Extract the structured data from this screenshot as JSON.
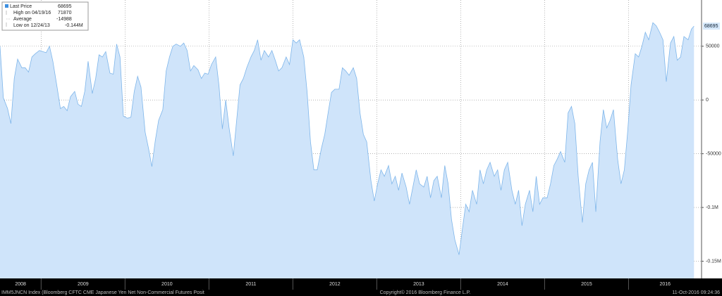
{
  "chart_data": {
    "type": "area",
    "color": "#cfe4fa",
    "line_color": "#7fb6ea",
    "grid": true,
    "xlim": [
      2008.51,
      2016.87
    ],
    "xticks": [
      2008,
      2009,
      2010,
      2011,
      2012,
      2013,
      2014,
      2015,
      2016
    ],
    "ylim": [
      -166000,
      93000
    ],
    "yticks": [
      50000,
      0,
      -50000,
      {
        "value": -100000,
        "label": "-0.1M"
      },
      {
        "value": -150000,
        "label": "-0.15M"
      }
    ],
    "x": [
      2008.51,
      2008.55,
      2008.6,
      2008.64,
      2008.68,
      2008.72,
      2008.77,
      2008.81,
      2008.85,
      2008.89,
      2008.93,
      2008.98,
      2009.02,
      2009.06,
      2009.1,
      2009.14,
      2009.19,
      2009.23,
      2009.27,
      2009.31,
      2009.35,
      2009.4,
      2009.44,
      2009.48,
      2009.52,
      2009.56,
      2009.61,
      2009.65,
      2009.69,
      2009.73,
      2009.77,
      2009.82,
      2009.86,
      2009.9,
      2009.94,
      2009.98,
      2010.03,
      2010.07,
      2010.11,
      2010.15,
      2010.19,
      2010.24,
      2010.28,
      2010.32,
      2010.36,
      2010.4,
      2010.45,
      2010.49,
      2010.53,
      2010.57,
      2010.61,
      2010.66,
      2010.7,
      2010.74,
      2010.78,
      2010.82,
      2010.87,
      2010.91,
      2010.95,
      2010.99,
      2011.03,
      2011.08,
      2011.12,
      2011.16,
      2011.2,
      2011.24,
      2011.29,
      2011.33,
      2011.37,
      2011.41,
      2011.45,
      2011.5,
      2011.54,
      2011.58,
      2011.62,
      2011.66,
      2011.71,
      2011.75,
      2011.79,
      2011.83,
      2011.87,
      2011.92,
      2011.96,
      2012.0,
      2012.04,
      2012.08,
      2012.13,
      2012.17,
      2012.21,
      2012.25,
      2012.29,
      2012.34,
      2012.38,
      2012.42,
      2012.46,
      2012.5,
      2012.55,
      2012.59,
      2012.63,
      2012.67,
      2012.72,
      2012.76,
      2012.8,
      2012.84,
      2012.88,
      2012.93,
      2012.97,
      2013.01,
      2013.05,
      2013.09,
      2013.14,
      2013.18,
      2013.22,
      2013.26,
      2013.3,
      2013.35,
      2013.39,
      2013.43,
      2013.47,
      2013.51,
      2013.56,
      2013.6,
      2013.64,
      2013.68,
      2013.72,
      2013.77,
      2013.81,
      2013.85,
      2013.89,
      2013.93,
      2013.98,
      2014.02,
      2014.06,
      2014.1,
      2014.14,
      2014.19,
      2014.23,
      2014.27,
      2014.31,
      2014.35,
      2014.4,
      2014.44,
      2014.48,
      2014.52,
      2014.56,
      2014.61,
      2014.65,
      2014.69,
      2014.73,
      2014.77,
      2014.82,
      2014.86,
      2014.9,
      2014.94,
      2014.98,
      2015.03,
      2015.07,
      2015.11,
      2015.15,
      2015.19,
      2015.24,
      2015.28,
      2015.32,
      2015.36,
      2015.4,
      2015.45,
      2015.49,
      2015.53,
      2015.57,
      2015.61,
      2015.66,
      2015.7,
      2015.74,
      2015.78,
      2015.82,
      2015.87,
      2015.91,
      2015.95,
      2015.99,
      2016.03,
      2016.08,
      2016.12,
      2016.16,
      2016.2,
      2016.24,
      2016.29,
      2016.33,
      2016.37,
      2016.41,
      2016.45,
      2016.5,
      2016.54,
      2016.58,
      2016.62,
      2016.66,
      2016.71,
      2016.75,
      2016.78
    ],
    "values": [
      50000,
      2000,
      -8000,
      -22000,
      20000,
      38000,
      30000,
      30000,
      26000,
      40000,
      43000,
      46000,
      45000,
      44000,
      50000,
      36000,
      12000,
      -8000,
      -6000,
      -10000,
      3000,
      8000,
      -4000,
      -6000,
      8000,
      36000,
      6000,
      20000,
      42000,
      40000,
      45000,
      25000,
      24000,
      52000,
      40000,
      -15000,
      -17000,
      -16000,
      8000,
      22000,
      12000,
      -30000,
      -45000,
      -62000,
      -38000,
      -19000,
      -9000,
      27000,
      40000,
      50000,
      52000,
      50000,
      53000,
      46000,
      27000,
      32000,
      28000,
      20000,
      25000,
      24000,
      33000,
      40000,
      13000,
      -27000,
      0,
      -26000,
      -52000,
      -19000,
      14000,
      20000,
      30000,
      40000,
      46000,
      56000,
      37000,
      46000,
      40000,
      46000,
      37000,
      27000,
      30000,
      40000,
      33000,
      56000,
      53000,
      56000,
      40000,
      7000,
      -39000,
      -65000,
      -65000,
      -45000,
      -32000,
      -12000,
      7000,
      10000,
      10000,
      30000,
      27000,
      23000,
      30000,
      20000,
      -12000,
      -32000,
      -39000,
      -75000,
      -94000,
      -78000,
      -65000,
      -71000,
      -61000,
      -78000,
      -71000,
      -84000,
      -68000,
      -81000,
      -97000,
      -81000,
      -65000,
      -78000,
      -81000,
      -71000,
      -91000,
      -75000,
      -71000,
      -91000,
      -61000,
      -78000,
      -111000,
      -130000,
      -144000,
      -120000,
      -97000,
      -104000,
      -84000,
      -97000,
      -65000,
      -78000,
      -65000,
      -58000,
      -71000,
      -65000,
      -84000,
      -65000,
      -58000,
      -84000,
      -97000,
      -84000,
      -117000,
      -97000,
      -84000,
      -104000,
      -71000,
      -97000,
      -91000,
      -91000,
      -78000,
      -61000,
      -55000,
      -48000,
      -58000,
      -12000,
      -6000,
      -22000,
      -71000,
      -114000,
      -78000,
      -65000,
      -58000,
      -104000,
      -39000,
      -9000,
      -26000,
      -19000,
      -9000,
      -55000,
      -78000,
      -65000,
      -29000,
      14000,
      43000,
      40000,
      50000,
      63000,
      56000,
      71870,
      69000,
      63000,
      56000,
      17000,
      53000,
      59000,
      37000,
      40000,
      59000,
      56000,
      66000,
      68695
    ],
    "stats": [
      {
        "label": "Last Price",
        "value": 68695
      },
      {
        "label": "High on 04/19/16",
        "value": 71870
      },
      {
        "label": "Average",
        "value": -14988
      },
      {
        "label": "Low on 12/24/13",
        "value": -144000,
        "value_label": "-0.144M"
      }
    ]
  },
  "footer": {
    "left": "IMM5JNCN Index (Bloomberg CFTC CME Japanese Yen Net Non-Commercial Futures Posit",
    "center": "Copyright© 2016 Bloomberg Finance L.P.",
    "right": "11-Oct-2016 09:24:36"
  }
}
